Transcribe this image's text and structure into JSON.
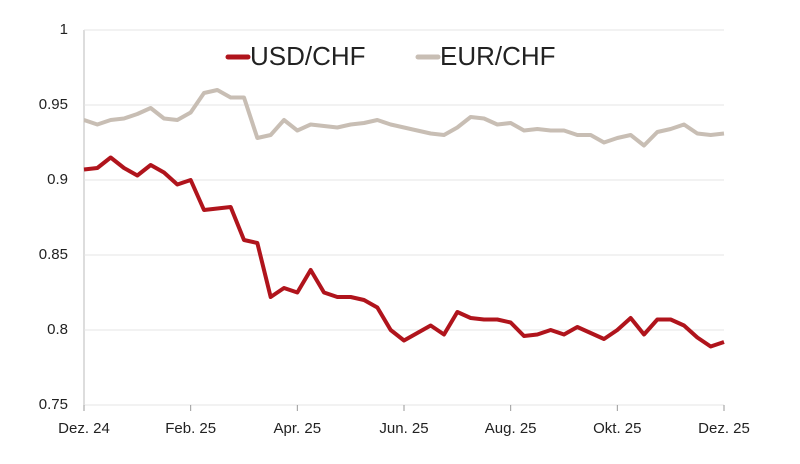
{
  "chart_data": {
    "type": "line",
    "categories": [
      "Dez. 24",
      null,
      null,
      null,
      null,
      null,
      null,
      null,
      "Feb. 25",
      null,
      null,
      null,
      null,
      null,
      null,
      null,
      "Apr. 25",
      null,
      null,
      null,
      null,
      null,
      null,
      null,
      "Jun. 25",
      null,
      null,
      null,
      null,
      null,
      null,
      null,
      "Aug. 25",
      null,
      null,
      null,
      null,
      null,
      null,
      null,
      "Okt. 25",
      null,
      null,
      null,
      null,
      null,
      null,
      null,
      "Dez. 25"
    ],
    "series": [
      {
        "name": "USD/CHF",
        "color": "#b0141c",
        "values": [
          0.907,
          0.908,
          0.915,
          0.908,
          0.903,
          0.91,
          0.905,
          0.897,
          0.9,
          0.88,
          0.881,
          0.882,
          0.86,
          0.858,
          0.822,
          0.828,
          0.825,
          0.84,
          0.825,
          0.822,
          0.822,
          0.82,
          0.815,
          0.8,
          0.793,
          0.798,
          0.803,
          0.797,
          0.812,
          0.808,
          0.807,
          0.807,
          0.805,
          0.796,
          0.797,
          0.8,
          0.797,
          0.802,
          0.798,
          0.794,
          0.8,
          0.808,
          0.797,
          0.807,
          0.807,
          0.803,
          0.795,
          0.789,
          0.792
        ]
      },
      {
        "name": "EUR/CHF",
        "color": "#c8beb4",
        "values": [
          0.94,
          0.937,
          0.94,
          0.941,
          0.944,
          0.948,
          0.941,
          0.94,
          0.945,
          0.958,
          0.96,
          0.955,
          0.955,
          0.928,
          0.93,
          0.94,
          0.933,
          0.937,
          0.936,
          0.935,
          0.937,
          0.938,
          0.94,
          0.937,
          0.935,
          0.933,
          0.931,
          0.93,
          0.935,
          0.942,
          0.941,
          0.937,
          0.938,
          0.933,
          0.934,
          0.933,
          0.933,
          0.93,
          0.93,
          0.925,
          0.928,
          0.93,
          0.923,
          0.932,
          0.934,
          0.937,
          0.931,
          0.93,
          0.931
        ]
      }
    ],
    "ylim": [
      0.75,
      1
    ],
    "yticks": [
      0.75,
      0.8,
      0.85,
      0.9,
      0.95,
      1
    ],
    "grid": true
  }
}
